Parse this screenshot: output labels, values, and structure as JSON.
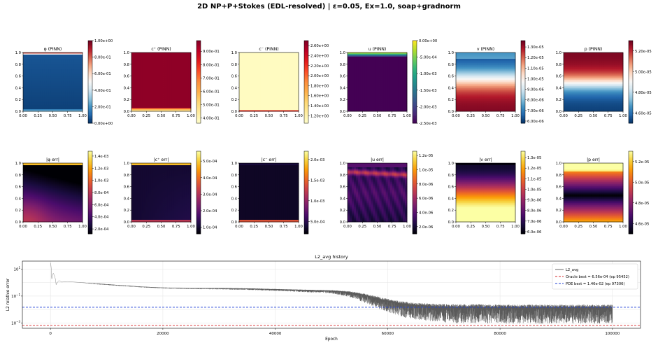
{
  "suptitle": "2D NP+P+Stokes (EDL-resolved)  |  ε=0.05, Ex=1.0, soap+gradnorm",
  "colors": {
    "oracle_line": "#d62728",
    "pde_line": "#1f3fd6",
    "history_line": "#555555"
  },
  "chart_data": [
    {
      "type": "heatmap",
      "title": "φ (PINN)",
      "colormap": "RdBu_r",
      "pattern": "phi",
      "x_ticks": [
        "0.00",
        "0.25",
        "0.50",
        "0.75",
        "1.00"
      ],
      "y_ticks": [
        "0.0",
        "0.2",
        "0.4",
        "0.6",
        "0.8",
        "1.0"
      ],
      "colorbar_ticks": [
        "1.00e+00",
        "8.00e-01",
        "6.00e-01",
        "4.00e-01",
        "2.00e-01",
        "0.00e+00"
      ],
      "colorbar_range": [
        0.0,
        1.0
      ]
    },
    {
      "type": "heatmap",
      "title": "c⁺ (PINN)",
      "colormap": "YlOrRd",
      "pattern": "cplus",
      "x_ticks": [
        "0.00",
        "0.25",
        "0.50",
        "0.75",
        "1.00"
      ],
      "y_ticks": [
        "0.0",
        "0.2",
        "0.4",
        "0.6",
        "0.8",
        "1.0"
      ],
      "colorbar_ticks": [
        "9.00e-01",
        "8.00e-01",
        "7.00e-01",
        "6.00e-01",
        "5.00e-01",
        "4.00e-01"
      ],
      "colorbar_range": [
        0.36,
        0.98
      ]
    },
    {
      "type": "heatmap",
      "title": "c⁻ (PINN)",
      "colormap": "YlOrRd",
      "pattern": "cminus",
      "x_ticks": [
        "0.00",
        "0.25",
        "0.50",
        "0.75",
        "1.00"
      ],
      "y_ticks": [
        "0.0",
        "0.2",
        "0.4",
        "0.6",
        "0.8",
        "1.0"
      ],
      "colorbar_ticks": [
        "2.60e+00",
        "2.40e+00",
        "2.20e+00",
        "2.00e+00",
        "1.80e+00",
        "1.60e+00",
        "1.40e+00",
        "1.20e+00"
      ],
      "colorbar_range": [
        1.05,
        2.7
      ]
    },
    {
      "type": "heatmap",
      "title": "u (PINN)",
      "colormap": "viridis",
      "pattern": "u",
      "x_ticks": [
        "0.00",
        "0.25",
        "0.50",
        "0.75",
        "1.00"
      ],
      "y_ticks": [
        "0.0",
        "0.2",
        "0.4",
        "0.6",
        "0.8",
        "1.0"
      ],
      "colorbar_ticks": [
        "0.00e+00",
        "-5.00e-04",
        "-1.00e-03",
        "-1.50e-03",
        "-2.00e-03",
        "-2.50e-03"
      ],
      "colorbar_range": [
        -0.0025,
        0.0
      ]
    },
    {
      "type": "heatmap",
      "title": "v (PINN)",
      "colormap": "RdBu_r",
      "pattern": "v",
      "x_ticks": [
        "0.00",
        "0.25",
        "0.50",
        "0.75",
        "1.00"
      ],
      "y_ticks": [
        "0.0",
        "0.2",
        "0.4",
        "0.6",
        "0.8",
        "1.0"
      ],
      "colorbar_ticks": [
        "1.30e-05",
        "1.20e-05",
        "1.10e-05",
        "1.00e-05",
        "9.00e-06",
        "8.00e-06",
        "7.00e-06",
        "6.00e-06"
      ],
      "colorbar_range": [
        5.8e-06,
        1.36e-05
      ]
    },
    {
      "type": "heatmap",
      "title": "p (PINN)",
      "colormap": "RdBu_r",
      "pattern": "p",
      "x_ticks": [
        "0.00",
        "0.25",
        "0.50",
        "0.75",
        "1.00"
      ],
      "y_ticks": [
        "0.0",
        "0.2",
        "0.4",
        "0.6",
        "0.8",
        "1.0"
      ],
      "colorbar_ticks": [
        "5.20e-05",
        "5.00e-05",
        "4.80e-05",
        "4.60e-05"
      ],
      "colorbar_range": [
        4.5e-05,
        5.3e-05
      ]
    },
    {
      "type": "heatmap",
      "title": "|φ err|",
      "colormap": "inferno",
      "pattern": "phierr",
      "x_ticks": [
        "0.00",
        "0.25",
        "0.50",
        "0.75",
        "1.00"
      ],
      "y_ticks": [
        "0.0",
        "0.2",
        "0.4",
        "0.6",
        "0.8",
        "1.0"
      ],
      "colorbar_ticks": [
        "1.4e-03",
        "1.2e-03",
        "1.0e-03",
        "8.0e-04",
        "6.0e-04",
        "4.0e-04",
        "2.0e-04"
      ],
      "colorbar_range": [
        0.00012,
        0.00148
      ]
    },
    {
      "type": "heatmap",
      "title": "|c⁺ err|",
      "colormap": "inferno",
      "pattern": "cperr",
      "x_ticks": [
        "0.00",
        "0.25",
        "0.50",
        "0.75",
        "1.00"
      ],
      "y_ticks": [
        "0.0",
        "0.2",
        "0.4",
        "0.6",
        "0.8",
        "1.0"
      ],
      "colorbar_ticks": [
        "5.0e-04",
        "4.0e-04",
        "3.0e-04",
        "2.0e-04",
        "1.0e-04"
      ],
      "colorbar_range": [
        6e-05,
        0.00056
      ]
    },
    {
      "type": "heatmap",
      "title": "|c⁻ err|",
      "colormap": "inferno",
      "pattern": "cmerr",
      "x_ticks": [
        "0.00",
        "0.25",
        "0.50",
        "0.75",
        "1.00"
      ],
      "y_ticks": [
        "0.0",
        "0.2",
        "0.4",
        "0.6",
        "0.8",
        "1.0"
      ],
      "colorbar_ticks": [
        "2.0e-03",
        "1.5e-03",
        "1.0e-03",
        "5.0e-04"
      ],
      "colorbar_range": [
        0.0002,
        0.0022
      ]
    },
    {
      "type": "heatmap",
      "title": "|u err|",
      "colormap": "inferno",
      "pattern": "uerr",
      "x_ticks": [
        "0.00",
        "0.25",
        "0.50",
        "0.75",
        "1.00"
      ],
      "y_ticks": [
        "0.0",
        "0.2",
        "0.4",
        "0.6",
        "0.8",
        "1.0"
      ],
      "colorbar_ticks": [
        "1.2e-05",
        "1.0e-05",
        "8.0e-06",
        "6.0e-06",
        "4.0e-06",
        "2.0e-06"
      ],
      "colorbar_range": [
        1e-06,
        1.26e-05
      ]
    },
    {
      "type": "heatmap",
      "title": "|v err|",
      "colormap": "inferno",
      "pattern": "verr",
      "x_ticks": [
        "0.00",
        "0.25",
        "0.50",
        "0.75",
        "1.00"
      ],
      "y_ticks": [
        "0.0",
        "0.2",
        "0.4",
        "0.6",
        "0.8",
        "1.0"
      ],
      "colorbar_ticks": [
        "1.3e-05",
        "1.2e-05",
        "1.1e-05",
        "1.0e-05",
        "9.0e-06",
        "8.0e-06",
        "7.0e-06",
        "6.0e-06"
      ],
      "colorbar_range": [
        5.8e-06,
        1.36e-05
      ]
    },
    {
      "type": "heatmap",
      "title": "|p err|",
      "colormap": "inferno",
      "pattern": "perr",
      "x_ticks": [
        "0.00",
        "0.25",
        "0.50",
        "0.75",
        "1.00"
      ],
      "y_ticks": [
        "0.0",
        "0.2",
        "0.4",
        "0.6",
        "0.8",
        "1.0"
      ],
      "colorbar_ticks": [
        "5.2e-05",
        "5.0e-05",
        "4.8e-05",
        "4.6e-05"
      ],
      "colorbar_range": [
        4.5e-05,
        5.3e-05
      ]
    },
    {
      "type": "line",
      "title": "L2_avg history",
      "xlabel": "Epoch",
      "ylabel": "L2 relative error",
      "yscale": "log",
      "xlim": [
        -5000,
        105000
      ],
      "ylim_exp": [
        -3.4,
        1.6
      ],
      "x_ticks": [
        0,
        20000,
        40000,
        60000,
        80000,
        100000
      ],
      "x_tick_labels": [
        "0",
        "20000",
        "40000",
        "60000",
        "80000",
        "100000"
      ],
      "y_tick_exponents": [
        -3,
        -1,
        1
      ],
      "grid": true,
      "legend_position": "upper right",
      "series": [
        {
          "name": "L2_avg",
          "epochs": [
            0,
            200,
            500,
            1000,
            1500,
            2000,
            3000,
            5000,
            8000,
            12000,
            16000,
            20000,
            25000,
            30000,
            35000,
            40000,
            45000,
            50000,
            53000,
            55000,
            57000,
            59000,
            61000,
            63000,
            65000,
            67000,
            69000,
            72000,
            76000,
            80000,
            85000,
            90000,
            95000,
            100000
          ],
          "values": [
            30,
            1.6,
            5,
            0.7,
            1.4,
            1.1,
            1.2,
            1.05,
            0.85,
            0.65,
            0.5,
            0.42,
            0.38,
            0.38,
            0.36,
            0.32,
            0.28,
            0.25,
            0.2,
            0.14,
            0.09,
            0.055,
            0.035,
            0.025,
            0.02,
            0.018,
            0.016,
            0.015,
            0.015,
            0.014,
            0.014,
            0.014,
            0.014,
            0.014
          ],
          "noise_decades": [
            0,
            0,
            0,
            0,
            0,
            0,
            0,
            0,
            0.05,
            0.05,
            0.05,
            0.05,
            0.06,
            0.08,
            0.1,
            0.12,
            0.15,
            0.2,
            0.35,
            0.5,
            0.65,
            0.8,
            0.9,
            1.0,
            1.05,
            1.1,
            1.15,
            1.2,
            1.2,
            1.2,
            1.2,
            1.2,
            1.2,
            1.2
          ]
        },
        {
          "name": "Oracle best = 6.56e-04 (ep 95452)",
          "hline": 0.000656,
          "style": "dashed"
        },
        {
          "name": "PDE best = 1.46e-02 (ep 97306)",
          "hline": 0.0146,
          "style": "dashed"
        }
      ]
    }
  ]
}
